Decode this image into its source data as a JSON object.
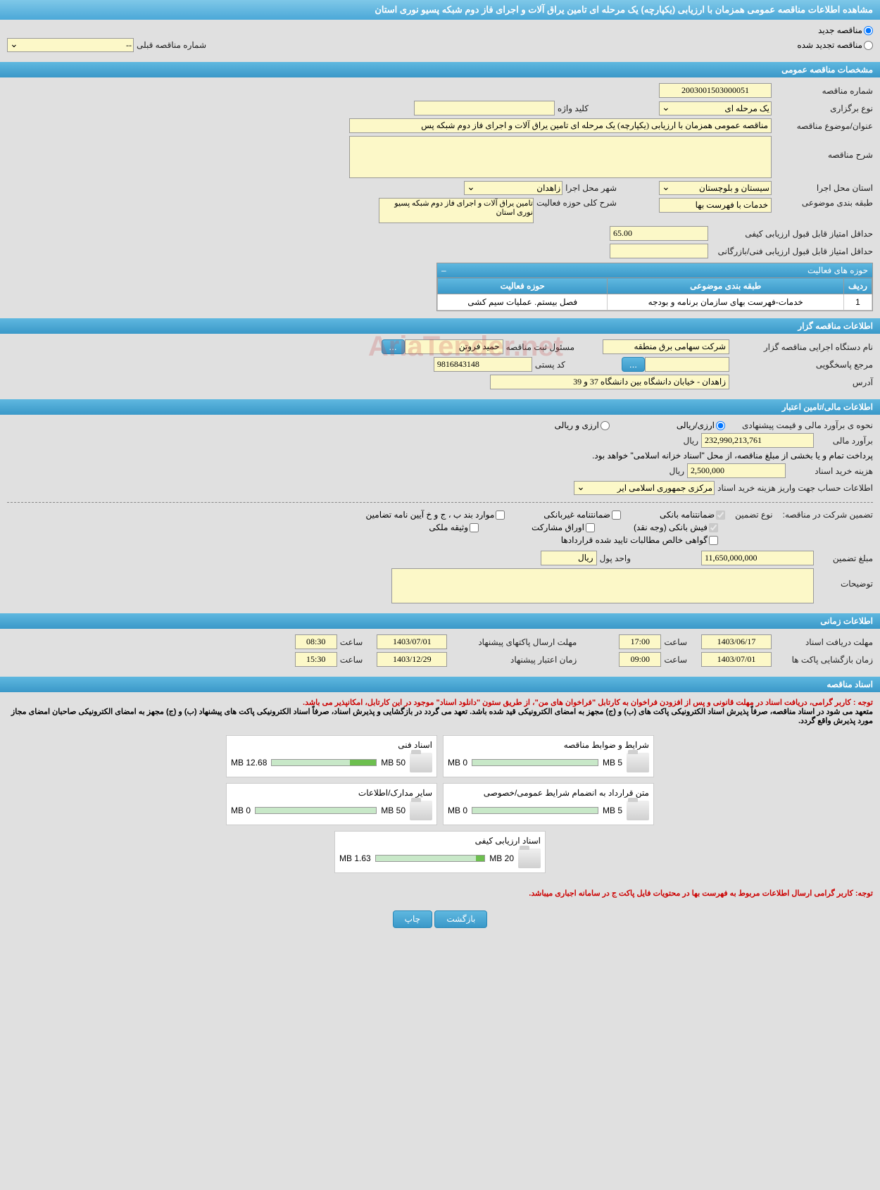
{
  "page_title": "مشاهده اطلاعات مناقصه عمومی همزمان با ارزیابی (یکپارچه) یک مرحله ای تامین یراق آلات و اجرای فاز دوم شبکه پسیو نوری استان",
  "top_options": {
    "new_tender": "مناقصه جدید",
    "renewed_tender": "مناقصه تجدید شده",
    "prev_number_label": "شماره مناقصه قبلی",
    "prev_number_value": "--"
  },
  "sections": {
    "general": "مشخصات مناقصه عمومی",
    "organizer": "اطلاعات مناقصه گزار",
    "financial": "اطلاعات مالی/تامین اعتبار",
    "timing": "اطلاعات زمانی",
    "documents": "اسناد مناقصه"
  },
  "general": {
    "tender_number_label": "شماره مناقصه",
    "tender_number": "2003001503000051",
    "type_label": "نوع برگزاری",
    "type_value": "یک مرحله ای",
    "keyword_label": "کلید واژه",
    "keyword_value": "",
    "subject_label": "عنوان/موضوع مناقصه",
    "subject_value": "مناقصه عمومی همزمان با ارزیابی (یکپارچه) یک مرحله ای تامین یراق آلات و اجرای فاز دوم شبکه پس",
    "description_label": "شرح مناقصه",
    "description_value": "",
    "province_label": "استان محل اجرا",
    "province_value": "سیستان و بلوچستان",
    "city_label": "شهر محل اجرا",
    "city_value": "زاهدان",
    "category_label": "طبقه بندی موضوعی",
    "category_value": "خدمات با فهرست بها",
    "activity_desc_label": "شرح کلی حوزه فعالیت",
    "activity_desc_value": "تامین یراق آلات و اجرای فاز دوم شبکه پسیو نوری استان",
    "min_quality_score_label": "حداقل امتیاز قابل قبول ارزیابی کیفی",
    "min_quality_score": "65.00",
    "min_tech_score_label": "حداقل امتیاز قابل قبول ارزیابی فنی/بازرگانی",
    "min_tech_score": ""
  },
  "activities_table": {
    "title": "حوزه های فعالیت",
    "col_row": "ردیف",
    "col_category": "طبقه بندی موضوعی",
    "col_activity": "حوزه فعالیت",
    "rows": [
      {
        "num": "1",
        "category": "خدمات-فهرست بهای سازمان برنامه و بودجه",
        "activity": "فصل بیستم. عملیات سیم کشی"
      }
    ]
  },
  "organizer": {
    "org_label": "نام دستگاه اجرایی مناقصه گزار",
    "org_value": "شرکت سهامی برق منطقه",
    "responsible_label": "مسئول ثبت مناقصه",
    "responsible_value": "حمید فروتن",
    "response_ref_label": "مرجع پاسخگویی",
    "response_ref_value": "",
    "postal_label": "کد پستی",
    "postal_value": "9816843148",
    "address_label": "آدرس",
    "address_value": "زاهدان - خیابان دانشگاه بین دانشگاه 37 و 39"
  },
  "financial": {
    "estimate_method_label": "نحوه ی برآورد مالی و قیمت پیشنهادی",
    "opt_rial": "ارزی/ریالی",
    "opt_currency": "ارزی و ریالی",
    "estimate_label": "برآورد مالی",
    "estimate_value": "232,990,213,761",
    "unit_rial": "ریال",
    "payment_note": "پرداخت تمام و یا بخشی از مبلغ مناقصه، از محل \"اسناد خزانه اسلامی\" خواهد بود.",
    "doc_cost_label": "هزینه خرید اسناد",
    "doc_cost_value": "2,500,000",
    "account_label": "اطلاعات حساب جهت واریز هزینه خرید اسناد",
    "account_value": "مرکزی جمهوری اسلامی ایر",
    "guarantee_label": "تضمین شرکت در مناقصه:",
    "guarantee_type_label": "نوع تضمین",
    "chk_bank_guarantee": "ضمانتنامه بانکی",
    "chk_nonbank_guarantee": "ضمانتنامه غیربانکی",
    "chk_items_bpjh": "موارد بند ب ، ج و خ آیین نامه تضامین",
    "chk_bank_receipt": "فیش بانکی (وجه نقد)",
    "chk_bonds": "اوراق مشارکت",
    "chk_property": "وثیقه ملکی",
    "chk_receivables": "گواهی خالص مطالبات تایید شده قراردادها",
    "guarantee_amount_label": "مبلغ تضمین",
    "guarantee_amount": "11,650,000,000",
    "currency_unit_label": "واحد پول",
    "currency_unit": "ریال",
    "notes_label": "توضیحات",
    "notes_value": ""
  },
  "timing": {
    "receipt_deadline_label": "مهلت دریافت اسناد",
    "receipt_deadline_date": "1403/06/17",
    "time_label": "ساعت",
    "receipt_deadline_time": "17:00",
    "submit_deadline_label": "مهلت ارسال پاکتهای پیشنهاد",
    "submit_deadline_date": "1403/07/01",
    "submit_deadline_time": "08:30",
    "opening_label": "زمان بازگشایی پاکت ها",
    "opening_date": "1403/07/01",
    "opening_time": "09:00",
    "validity_label": "زمان اعتبار پیشنهاد",
    "validity_date": "1403/12/29",
    "validity_time": "15:30"
  },
  "documents": {
    "note1": "توجه : کاربر گرامی، دریافت اسناد در مهلت قانونی و پس از افزودن فراخوان به کارتابل \"فراخوان های من\"، از طریق ستون \"دانلود اسناد\" موجود در این کارتابل، امکانپذیر می باشد.",
    "note2": "متعهد می شود در اسناد مناقصه، صرفاً پذیرش اسناد الکترونیکی پاکت های (ب) و (ج) مجهز به امضای الکترونیکی قید شده باشد. تعهد می گردد در بازگشایی و پذیرش اسناد، صرفاً اسناد الکترونیکی پاکت های پیشنهاد (ب) و (ج) مجهز به امضای الکترونیکی صاحبان امضای مجاز مورد پذیرش واقع گردد.",
    "files": [
      {
        "title": "شرایط و ضوابط مناقصه",
        "used": "0 MB",
        "total": "5 MB",
        "pct": 0
      },
      {
        "title": "اسناد فنی",
        "used": "12.68 MB",
        "total": "50 MB",
        "pct": 25
      },
      {
        "title": "متن قرارداد به انضمام شرایط عمومی/خصوصی",
        "used": "0 MB",
        "total": "5 MB",
        "pct": 0
      },
      {
        "title": "سایر مدارک/اطلاعات",
        "used": "0 MB",
        "total": "50 MB",
        "pct": 0
      },
      {
        "title": "اسناد ارزیابی کیفی",
        "used": "1.63 MB",
        "total": "20 MB",
        "pct": 8
      }
    ],
    "bottom_note": "توجه: کاربر گرامی ارسال اطلاعات مربوط به فهرست بها در محتویات فایل پاکت ج در سامانه اجباری میباشد."
  },
  "buttons": {
    "back": "بازگشت",
    "print": "چاپ"
  },
  "watermark": "AriaTender.net"
}
